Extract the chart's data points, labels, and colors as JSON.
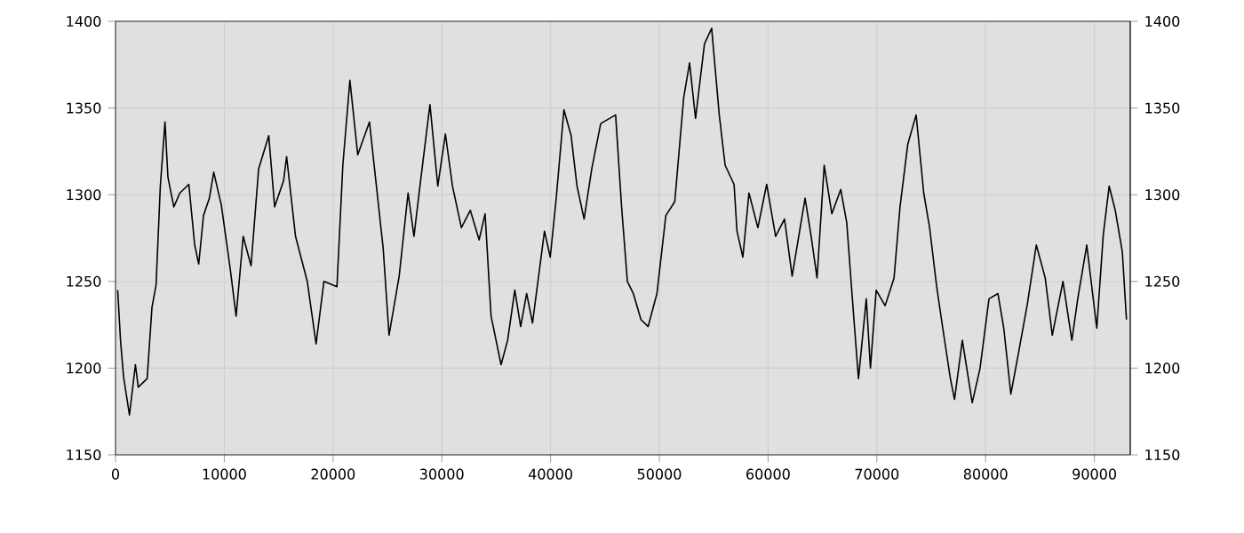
{
  "chart_data": {
    "type": "line",
    "color": "#000000",
    "x": [
      200,
      460,
      740,
      1280,
      1830,
      2090,
      2910,
      3350,
      3730,
      4120,
      4550,
      4820,
      5360,
      5920,
      6740,
      7280,
      7650,
      8090,
      8630,
      9030,
      9730,
      10550,
      11090,
      11740,
      12460,
      13160,
      14090,
      14630,
      15450,
      15730,
      16550,
      17630,
      18440,
      19160,
      20360,
      20900,
      21550,
      22270,
      23350,
      23900,
      24610,
      25150,
      26080,
      26900,
      27440,
      27990,
      28910,
      29630,
      30330,
      30980,
      31800,
      32620,
      33430,
      33980,
      34530,
      35450,
      36050,
      36710,
      37250,
      37800,
      38340,
      39440,
      39970,
      40520,
      41230,
      41890,
      42430,
      43080,
      43790,
      44610,
      45980,
      46520,
      47060,
      47610,
      48310,
      48970,
      49780,
      50600,
      51420,
      52240,
      52780,
      53330,
      54150,
      54810,
      55510,
      56050,
      56870,
      57140,
      57680,
      58240,
      59060,
      59870,
      60690,
      61510,
      62210,
      63400,
      63960,
      64500,
      65160,
      65860,
      66680,
      67230,
      67880,
      68310,
      69030,
      69410,
      69940,
      70760,
      71580,
      72130,
      72840,
      73610,
      74310,
      74850,
      75500,
      76060,
      76760,
      77140,
      77860,
      78770,
      79490,
      80310,
      81130,
      81670,
      82320,
      83030,
      83840,
      84660,
      85480,
      86130,
      87110,
      87930,
      88470,
      89300,
      90220,
      90820,
      91360,
      91920,
      92570,
      92950
    ],
    "values": [
      1245,
      1216,
      1195,
      1173,
      1202,
      1189,
      1194,
      1235,
      1248,
      1305,
      1342,
      1310,
      1293,
      1301,
      1306,
      1271,
      1260,
      1288,
      1298,
      1313,
      1294,
      1257,
      1230,
      1276,
      1259,
      1315,
      1334,
      1293,
      1308,
      1322,
      1276,
      1250,
      1214,
      1250,
      1247,
      1317,
      1366,
      1323,
      1342,
      1310,
      1269,
      1219,
      1253,
      1301,
      1276,
      1305,
      1352,
      1305,
      1335,
      1305,
      1281,
      1291,
      1274,
      1289,
      1230,
      1202,
      1216,
      1245,
      1224,
      1243,
      1226,
      1279,
      1264,
      1298,
      1349,
      1334,
      1305,
      1286,
      1315,
      1341,
      1346,
      1294,
      1250,
      1243,
      1228,
      1224,
      1243,
      1288,
      1296,
      1356,
      1376,
      1344,
      1387,
      1396,
      1346,
      1317,
      1306,
      1279,
      1264,
      1301,
      1281,
      1306,
      1276,
      1286,
      1253,
      1298,
      1276,
      1252,
      1317,
      1289,
      1303,
      1284,
      1229,
      1194,
      1240,
      1200,
      1245,
      1236,
      1252,
      1293,
      1329,
      1346,
      1301,
      1281,
      1247,
      1223,
      1194,
      1182,
      1216,
      1180,
      1200,
      1240,
      1243,
      1223,
      1185,
      1209,
      1237,
      1271,
      1252,
      1219,
      1250,
      1216,
      1240,
      1271,
      1223,
      1277,
      1305,
      1291,
      1267,
      1228
    ],
    "xlim": [
      0,
      93300
    ],
    "xticks": [
      0,
      10000,
      20000,
      30000,
      40000,
      50000,
      60000,
      70000,
      80000,
      90000
    ],
    "ylim": [
      1150,
      1400
    ],
    "yticks": [
      1150,
      1200,
      1250,
      1300,
      1350,
      1400
    ],
    "y2lim": [
      1150,
      1400
    ],
    "y2ticks": [
      1150,
      1200,
      1250,
      1300,
      1350,
      1400
    ],
    "grid": true,
    "marker": "none",
    "line_style": "solid"
  }
}
